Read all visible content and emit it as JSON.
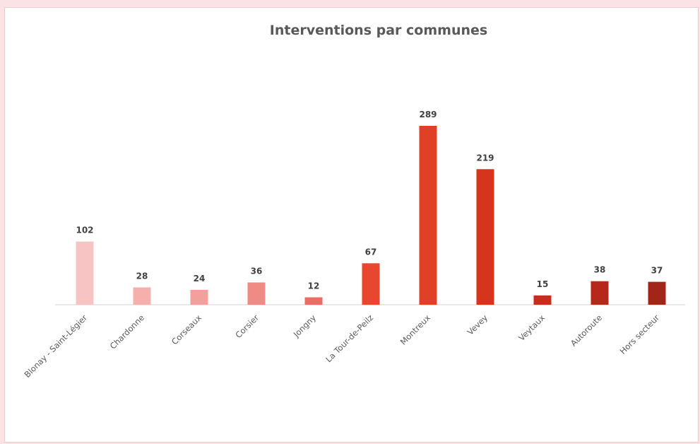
{
  "chart_data": {
    "type": "bar",
    "title": "Interventions par communes",
    "xlabel": "",
    "ylabel": "",
    "ylim": [
      0,
      300
    ],
    "grid": false,
    "legend": "none",
    "categories": [
      "Blonay - Saint-Légier",
      "Chardonne",
      "Corseaux",
      "Corsier",
      "Jongny",
      "La Tour-de-Peilz",
      "Montreux",
      "Vevey",
      "Veytaux",
      "Autoroute",
      "Hors secteur"
    ],
    "values": [
      102,
      28,
      24,
      36,
      12,
      67,
      289,
      219,
      15,
      38,
      37
    ],
    "colors": [
      "#f7c4c3",
      "#f5b0ad",
      "#f39f9b",
      "#ef8a84",
      "#ec6c63",
      "#e8472f",
      "#e04126",
      "#d5341d",
      "#c52e1b",
      "#b5281a",
      "#a32418"
    ]
  }
}
